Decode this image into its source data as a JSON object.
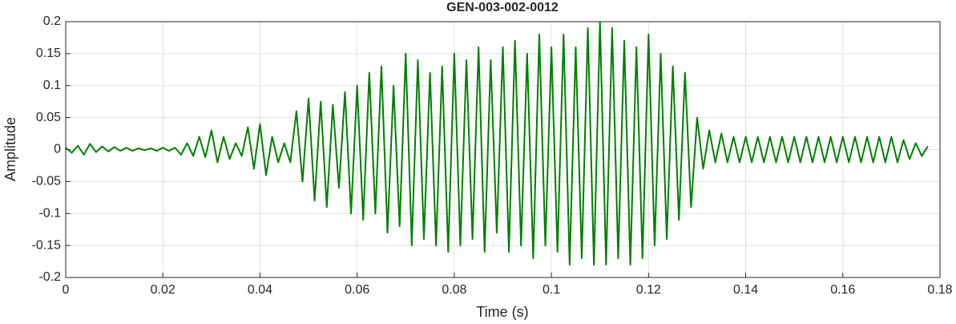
{
  "chart_data": {
    "type": "line",
    "title": "GEN-003-002-0012",
    "xlabel": "Time (s)",
    "ylabel": "Amplitude",
    "xlim": [
      0,
      0.18
    ],
    "xticks": [
      0,
      0.02,
      0.04,
      0.06,
      0.08,
      0.1,
      0.12,
      0.14,
      0.16,
      0.18
    ],
    "ylim": [
      -0.2,
      0.2
    ],
    "yticks": [
      -0.2,
      -0.15,
      -0.1,
      -0.05,
      0,
      0.05,
      0.1,
      0.15,
      0.2
    ],
    "grid": true,
    "x": [
      0,
      0.00125,
      0.0025,
      0.00375,
      0.005,
      0.00625,
      0.0075,
      0.00875,
      0.01,
      0.01125,
      0.0125,
      0.01375,
      0.015,
      0.01625,
      0.0175,
      0.01875,
      0.02,
      0.02125,
      0.0225,
      0.02375,
      0.025,
      0.02625,
      0.0275,
      0.02875,
      0.03,
      0.03125,
      0.0325,
      0.03375,
      0.035,
      0.03625,
      0.0375,
      0.03875,
      0.04,
      0.04125,
      0.0425,
      0.04375,
      0.045,
      0.04625,
      0.0475,
      0.04875,
      0.05,
      0.05125,
      0.0525,
      0.05375,
      0.055,
      0.05625,
      0.0575,
      0.05875,
      0.06,
      0.06125,
      0.0625,
      0.06375,
      0.065,
      0.06625,
      0.0675,
      0.06875,
      0.07,
      0.07125,
      0.0725,
      0.07375,
      0.075,
      0.07625,
      0.0775,
      0.07875,
      0.08,
      0.08125,
      0.0825,
      0.08375,
      0.085,
      0.08625,
      0.0875,
      0.08875,
      0.09,
      0.09125,
      0.0925,
      0.09375,
      0.095,
      0.09625,
      0.0975,
      0.09875,
      0.1,
      0.10125,
      0.1025,
      0.10375,
      0.105,
      0.10625,
      0.1075,
      0.10875,
      0.11,
      0.11125,
      0.1125,
      0.11375,
      0.115,
      0.11625,
      0.1175,
      0.11875,
      0.12,
      0.12125,
      0.1225,
      0.12375,
      0.125,
      0.12625,
      0.1275,
      0.12875,
      0.13,
      0.13125,
      0.1325,
      0.13375,
      0.135,
      0.13625,
      0.1375,
      0.13875,
      0.14,
      0.14125,
      0.1425,
      0.14375,
      0.145,
      0.14625,
      0.1475,
      0.14875,
      0.15,
      0.15125,
      0.1525,
      0.15375,
      0.155,
      0.15625,
      0.1575,
      0.15875,
      0.16,
      0.16125,
      0.1625,
      0.16375,
      0.165,
      0.16625,
      0.1675,
      0.16875,
      0.17,
      0.17125,
      0.1725,
      0.17375,
      0.175,
      0.17625,
      0.1775
    ],
    "series": [
      {
        "color": "#008000",
        "values": [
          0.003,
          -0.005,
          0.006,
          -0.008,
          0.009,
          -0.004,
          0.005,
          -0.003,
          0.004,
          -0.002,
          0.003,
          -0.002,
          0.002,
          -0.001,
          0.002,
          -0.002,
          0.003,
          -0.002,
          0.003,
          -0.008,
          0.01,
          -0.01,
          0.02,
          -0.012,
          0.03,
          -0.02,
          0.02,
          -0.015,
          0.01,
          -0.01,
          0.035,
          -0.03,
          0.04,
          -0.04,
          0.02,
          -0.02,
          0.01,
          -0.02,
          0.06,
          -0.05,
          0.08,
          -0.08,
          0.075,
          -0.09,
          0.07,
          -0.06,
          0.09,
          -0.1,
          0.1,
          -0.11,
          0.12,
          -0.1,
          0.13,
          -0.13,
          0.1,
          -0.12,
          0.15,
          -0.15,
          0.14,
          -0.14,
          0.12,
          -0.15,
          0.13,
          -0.16,
          0.15,
          -0.15,
          0.14,
          -0.14,
          0.16,
          -0.16,
          0.14,
          -0.13,
          0.16,
          -0.16,
          0.17,
          -0.15,
          0.15,
          -0.17,
          0.18,
          -0.15,
          0.16,
          -0.16,
          0.18,
          -0.18,
          0.16,
          -0.17,
          0.19,
          -0.18,
          0.2,
          -0.18,
          0.19,
          -0.17,
          0.17,
          -0.18,
          0.16,
          -0.17,
          0.18,
          -0.15,
          0.15,
          -0.14,
          0.13,
          -0.11,
          0.12,
          -0.09,
          0.05,
          -0.03,
          0.03,
          -0.02,
          0.025,
          -0.02,
          0.02,
          -0.02,
          0.02,
          -0.02,
          0.02,
          -0.02,
          0.02,
          -0.02,
          0.02,
          -0.02,
          0.02,
          -0.02,
          0.02,
          -0.02,
          0.02,
          -0.02,
          0.02,
          -0.02,
          0.02,
          -0.02,
          0.02,
          -0.02,
          0.02,
          -0.02,
          0.02,
          -0.02,
          0.02,
          -0.02,
          0.015,
          -0.015,
          0.01,
          -0.01,
          0.005
        ]
      }
    ]
  }
}
